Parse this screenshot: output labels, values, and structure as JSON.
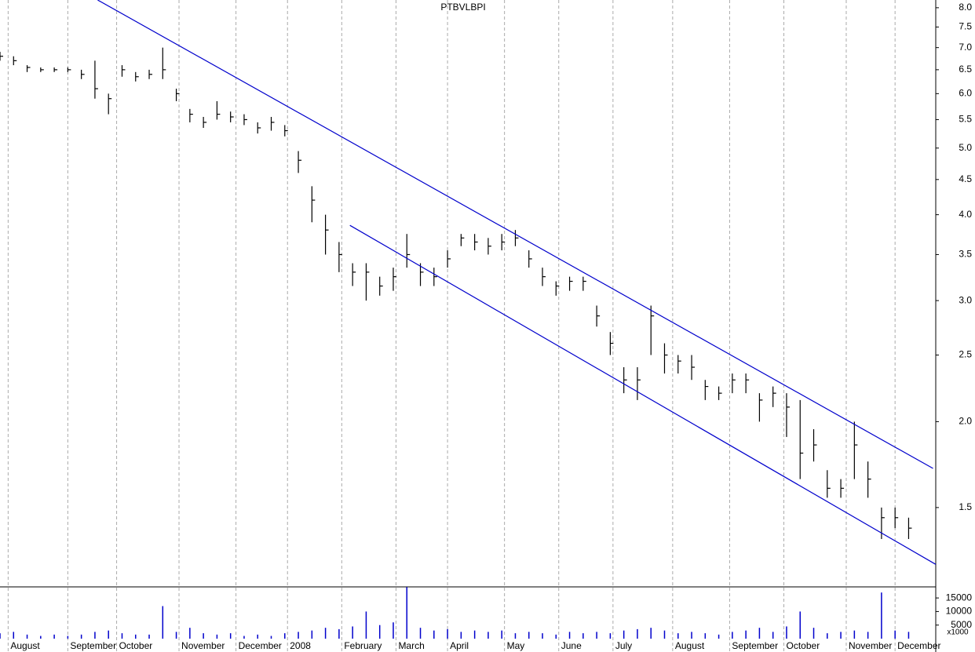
{
  "chart_data": {
    "type": "ohlc",
    "title": "PTBVLBPI",
    "log_scale": true,
    "grid": true,
    "color": "#000000",
    "xlim": [
      0,
      345
    ],
    "xticks": [
      {
        "value": 3,
        "label": "August"
      },
      {
        "value": 25,
        "label": "September"
      },
      {
        "value": 43,
        "label": "October"
      },
      {
        "value": 66,
        "label": "November"
      },
      {
        "value": 87,
        "label": "December"
      },
      {
        "value": 106,
        "label": "2008"
      },
      {
        "value": 126,
        "label": "February"
      },
      {
        "value": 146,
        "label": "March"
      },
      {
        "value": 165,
        "label": "April"
      },
      {
        "value": 186,
        "label": "May"
      },
      {
        "value": 206,
        "label": "June"
      },
      {
        "value": 226,
        "label": "July"
      },
      {
        "value": 248,
        "label": "August"
      },
      {
        "value": 269,
        "label": "September"
      },
      {
        "value": 289,
        "label": "October"
      },
      {
        "value": 312,
        "label": "November"
      },
      {
        "value": 330,
        "label": "December"
      }
    ],
    "ylim": [
      1.15,
      8.21
    ],
    "yticks": [
      {
        "value": 8,
        "label": "8.0"
      },
      7.5,
      {
        "value": 7,
        "label": "7.0"
      },
      6.5,
      {
        "value": 6,
        "label": "6.0"
      },
      5.5,
      {
        "value": 5,
        "label": "5.0"
      },
      4.5,
      {
        "value": 4,
        "label": "4.0"
      },
      3.5,
      {
        "value": 3,
        "label": "3.0"
      },
      2.5,
      {
        "value": 2,
        "label": "2.0"
      },
      1.5
    ],
    "x": [
      0,
      5,
      10,
      15,
      20,
      25,
      30,
      35,
      40,
      45,
      50,
      55,
      60,
      65,
      70,
      75,
      80,
      85,
      90,
      95,
      100,
      105,
      110,
      115,
      120,
      125,
      130,
      135,
      140,
      145,
      150,
      155,
      160,
      165,
      170,
      175,
      180,
      185,
      190,
      195,
      200,
      205,
      210,
      215,
      220,
      225,
      230,
      235,
      240,
      245,
      250,
      255,
      260,
      265,
      270,
      275,
      280,
      285,
      290,
      295,
      300,
      305,
      310,
      315,
      320,
      325,
      330,
      335
    ],
    "high": [
      6.9,
      6.8,
      6.6,
      6.55,
      6.55,
      6.55,
      6.5,
      6.7,
      6.0,
      6.6,
      6.45,
      6.5,
      7.0,
      6.1,
      5.7,
      5.55,
      5.85,
      5.65,
      5.6,
      5.45,
      5.55,
      5.4,
      4.95,
      4.4,
      4.0,
      3.65,
      3.4,
      3.4,
      3.25,
      3.35,
      3.75,
      3.4,
      3.35,
      3.55,
      3.75,
      3.75,
      3.7,
      3.75,
      3.8,
      3.55,
      3.35,
      3.2,
      3.25,
      3.25,
      2.95,
      2.7,
      2.4,
      2.4,
      2.95,
      2.6,
      2.5,
      2.5,
      2.3,
      2.25,
      2.35,
      2.35,
      2.2,
      2.25,
      2.2,
      2.15,
      1.95,
      1.7,
      1.65,
      2.0,
      1.75,
      1.5,
      1.5,
      1.45
    ],
    "low": [
      6.7,
      6.6,
      6.45,
      6.45,
      6.45,
      6.45,
      6.3,
      5.9,
      5.6,
      6.35,
      6.25,
      6.3,
      6.3,
      5.85,
      5.45,
      5.35,
      5.5,
      5.45,
      5.4,
      5.25,
      5.3,
      5.2,
      4.6,
      3.9,
      3.5,
      3.3,
      3.15,
      3.0,
      3.05,
      3.1,
      3.35,
      3.15,
      3.15,
      3.35,
      3.6,
      3.55,
      3.5,
      3.55,
      3.6,
      3.35,
      3.15,
      3.05,
      3.1,
      3.1,
      2.75,
      2.5,
      2.2,
      2.15,
      2.5,
      2.35,
      2.35,
      2.3,
      2.15,
      2.15,
      2.2,
      2.2,
      2.0,
      2.1,
      1.9,
      1.65,
      1.75,
      1.55,
      1.55,
      1.65,
      1.55,
      1.35,
      1.4,
      1.35
    ],
    "close": [
      6.8,
      6.7,
      6.55,
      6.5,
      6.5,
      6.5,
      6.4,
      6.1,
      5.9,
      6.5,
      6.35,
      6.4,
      6.5,
      6.0,
      5.6,
      5.45,
      5.6,
      5.55,
      5.5,
      5.35,
      5.45,
      5.3,
      4.8,
      4.2,
      3.8,
      3.5,
      3.3,
      3.3,
      3.15,
      3.25,
      3.5,
      3.3,
      3.25,
      3.45,
      3.7,
      3.65,
      3.6,
      3.65,
      3.7,
      3.45,
      3.25,
      3.15,
      3.2,
      3.2,
      2.85,
      2.6,
      2.3,
      2.3,
      2.85,
      2.5,
      2.45,
      2.4,
      2.25,
      2.2,
      2.3,
      2.3,
      2.15,
      2.2,
      2.1,
      1.8,
      1.85,
      1.6,
      1.6,
      1.85,
      1.65,
      1.45,
      1.45,
      1.4
    ],
    "trendlines": [
      {
        "x": [
          36,
          344
        ],
        "values": [
          8.21,
          1.71
        ],
        "color": "#0000cc"
      },
      {
        "x": [
          129,
          345
        ],
        "values": [
          3.86,
          1.24
        ],
        "color": "#0000cc"
      }
    ],
    "volume": {
      "values": [
        2000,
        2500,
        1500,
        1000,
        1500,
        1000,
        1500,
        2500,
        3000,
        2000,
        1500,
        1500,
        12000,
        2500,
        4000,
        2000,
        1500,
        2000,
        1000,
        1500,
        1000,
        2000,
        2500,
        3000,
        4000,
        3500,
        4500,
        10000,
        5000,
        6000,
        19000,
        4000,
        3000,
        3500,
        2500,
        3000,
        2500,
        3000,
        2000,
        2500,
        2000,
        1500,
        2500,
        2000,
        2500,
        2000,
        3000,
        3500,
        4000,
        3000,
        2000,
        2500,
        2000,
        1500,
        2500,
        3000,
        4000,
        2500,
        4500,
        10000,
        4000,
        2000,
        2500,
        3000,
        2500,
        17000,
        3000,
        2500
      ],
      "color": "#0000cc",
      "ylim": [
        0,
        18500
      ],
      "yticks": [
        15000,
        10000,
        5000
      ],
      "unit": "x1000"
    }
  }
}
